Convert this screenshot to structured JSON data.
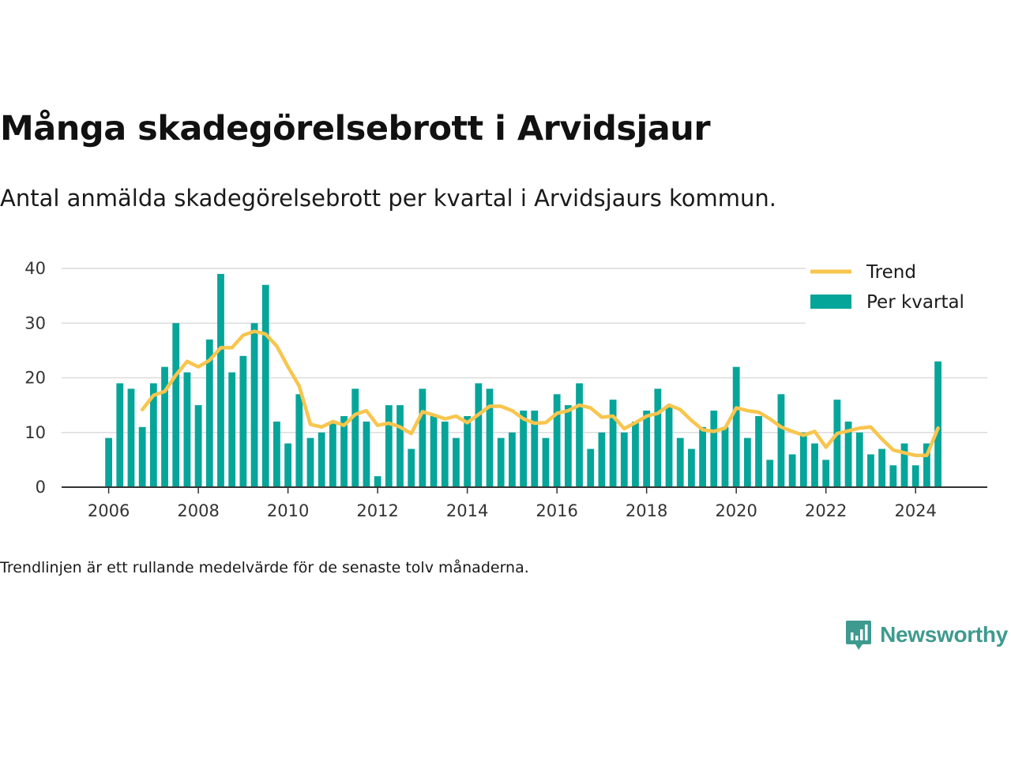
{
  "title": "Många skadegörelsebrott i Arvidsjaur",
  "subtitle": "Antal anmälda skadegörelsebrott per kvartal i Arvidsjaurs kommun.",
  "note": "Trendlinjen är ett rullande medelvärde för de senaste tolv månaderna.",
  "logo": {
    "text": "Newsworthy",
    "color": "#3e9a8e",
    "icon": "bar-chart-speech-bubble-icon"
  },
  "chart_data": {
    "type": "bar",
    "title": "Många skadegörelsebrott i Arvidsjaur",
    "subtitle": "Antal anmälda skadegörelsebrott per kvartal i Arvidsjaurs kommun.",
    "xlabel": "",
    "ylabel": "",
    "ylim": [
      0,
      40
    ],
    "xlim": [
      2004.95,
      2025.6
    ],
    "x_ticks": [
      2006,
      2008,
      2010,
      2012,
      2014,
      2016,
      2018,
      2020,
      2022,
      2024
    ],
    "y_ticks": [
      0,
      10,
      20,
      30,
      40
    ],
    "grid": true,
    "legend_placement": "top-right",
    "legend": [
      {
        "label": "Trend",
        "type": "line",
        "color": "#f8c54e"
      },
      {
        "label": "Per kvartal",
        "type": "bar",
        "color": "#06a59a"
      }
    ],
    "categories": [
      "2006-Q1",
      "2006-Q2",
      "2006-Q3",
      "2006-Q4",
      "2007-Q1",
      "2007-Q2",
      "2007-Q3",
      "2007-Q4",
      "2008-Q1",
      "2008-Q2",
      "2008-Q3",
      "2008-Q4",
      "2009-Q1",
      "2009-Q2",
      "2009-Q3",
      "2009-Q4",
      "2010-Q1",
      "2010-Q2",
      "2010-Q3",
      "2010-Q4",
      "2011-Q1",
      "2011-Q2",
      "2011-Q3",
      "2011-Q4",
      "2012-Q1",
      "2012-Q2",
      "2012-Q3",
      "2012-Q4",
      "2013-Q1",
      "2013-Q2",
      "2013-Q3",
      "2013-Q4",
      "2014-Q1",
      "2014-Q2",
      "2014-Q3",
      "2014-Q4",
      "2015-Q1",
      "2015-Q2",
      "2015-Q3",
      "2015-Q4",
      "2016-Q1",
      "2016-Q2",
      "2016-Q3",
      "2016-Q4",
      "2017-Q1",
      "2017-Q2",
      "2017-Q3",
      "2017-Q4",
      "2018-Q1",
      "2018-Q2",
      "2018-Q3",
      "2018-Q4",
      "2019-Q1",
      "2019-Q2",
      "2019-Q3",
      "2019-Q4",
      "2020-Q1",
      "2020-Q2",
      "2020-Q3",
      "2020-Q4",
      "2021-Q1",
      "2021-Q2",
      "2021-Q3",
      "2021-Q4",
      "2022-Q1",
      "2022-Q2",
      "2022-Q3",
      "2022-Q4",
      "2023-Q1",
      "2023-Q2",
      "2023-Q3",
      "2023-Q4",
      "2024-Q1",
      "2024-Q2",
      "2024-Q3"
    ],
    "series": [
      {
        "name": "Per kvartal",
        "type": "bar",
        "color": "#06a59a",
        "values": [
          9,
          19,
          18,
          11,
          19,
          22,
          30,
          21,
          15,
          27,
          39,
          21,
          24,
          30,
          37,
          12,
          8,
          17,
          9,
          10,
          12,
          13,
          18,
          12,
          2,
          15,
          15,
          7,
          18,
          13,
          12,
          9,
          13,
          19,
          18,
          9,
          10,
          14,
          14,
          9,
          17,
          15,
          19,
          7,
          10,
          16,
          10,
          12,
          14,
          18,
          15,
          9,
          7,
          11,
          14,
          11,
          22,
          9,
          13,
          5,
          17,
          6,
          10,
          8,
          5,
          16,
          12,
          10,
          6,
          7,
          4,
          8,
          4,
          8,
          23
        ]
      },
      {
        "name": "Trend",
        "type": "line",
        "color": "#f8c54e",
        "points": [
          [
            2006.75,
            14.2
          ],
          [
            2007.0,
            16.8
          ],
          [
            2007.25,
            17.5
          ],
          [
            2007.5,
            20.5
          ],
          [
            2007.75,
            23.0
          ],
          [
            2008.0,
            22.0
          ],
          [
            2008.25,
            23.2
          ],
          [
            2008.5,
            25.5
          ],
          [
            2008.75,
            25.5
          ],
          [
            2009.0,
            27.8
          ],
          [
            2009.25,
            28.5
          ],
          [
            2009.5,
            28.0
          ],
          [
            2009.75,
            25.8
          ],
          [
            2010.0,
            22.0
          ],
          [
            2010.25,
            18.5
          ],
          [
            2010.5,
            11.5
          ],
          [
            2010.75,
            11.0
          ],
          [
            2011.0,
            12.0
          ],
          [
            2011.25,
            11.3
          ],
          [
            2011.5,
            13.3
          ],
          [
            2011.75,
            14.0
          ],
          [
            2012.0,
            11.3
          ],
          [
            2012.25,
            11.7
          ],
          [
            2012.5,
            11.0
          ],
          [
            2012.75,
            9.8
          ],
          [
            2013.0,
            13.8
          ],
          [
            2013.25,
            13.2
          ],
          [
            2013.5,
            12.5
          ],
          [
            2013.75,
            13.0
          ],
          [
            2014.0,
            11.8
          ],
          [
            2014.25,
            13.3
          ],
          [
            2014.5,
            14.8
          ],
          [
            2014.75,
            14.8
          ],
          [
            2015.0,
            14.0
          ],
          [
            2015.25,
            12.5
          ],
          [
            2015.5,
            11.7
          ],
          [
            2015.75,
            11.8
          ],
          [
            2016.0,
            13.5
          ],
          [
            2016.25,
            14.0
          ],
          [
            2016.5,
            15.0
          ],
          [
            2016.75,
            14.5
          ],
          [
            2017.0,
            12.8
          ],
          [
            2017.25,
            13.0
          ],
          [
            2017.5,
            10.7
          ],
          [
            2017.75,
            11.8
          ],
          [
            2018.0,
            13.0
          ],
          [
            2018.25,
            13.5
          ],
          [
            2018.5,
            15.0
          ],
          [
            2018.75,
            14.2
          ],
          [
            2019.0,
            12.2
          ],
          [
            2019.25,
            10.5
          ],
          [
            2019.5,
            10.2
          ],
          [
            2019.75,
            10.8
          ],
          [
            2020.0,
            14.5
          ],
          [
            2020.25,
            14.0
          ],
          [
            2020.5,
            13.7
          ],
          [
            2020.75,
            12.5
          ],
          [
            2021.0,
            11.0
          ],
          [
            2021.25,
            10.2
          ],
          [
            2021.5,
            9.5
          ],
          [
            2021.75,
            10.2
          ],
          [
            2022.0,
            7.3
          ],
          [
            2022.25,
            9.8
          ],
          [
            2022.5,
            10.3
          ],
          [
            2022.75,
            10.8
          ],
          [
            2023.0,
            11.0
          ],
          [
            2023.25,
            8.8
          ],
          [
            2023.5,
            6.8
          ],
          [
            2023.75,
            6.3
          ],
          [
            2024.0,
            5.8
          ],
          [
            2024.25,
            5.8
          ],
          [
            2024.5,
            10.8
          ]
        ]
      }
    ]
  }
}
